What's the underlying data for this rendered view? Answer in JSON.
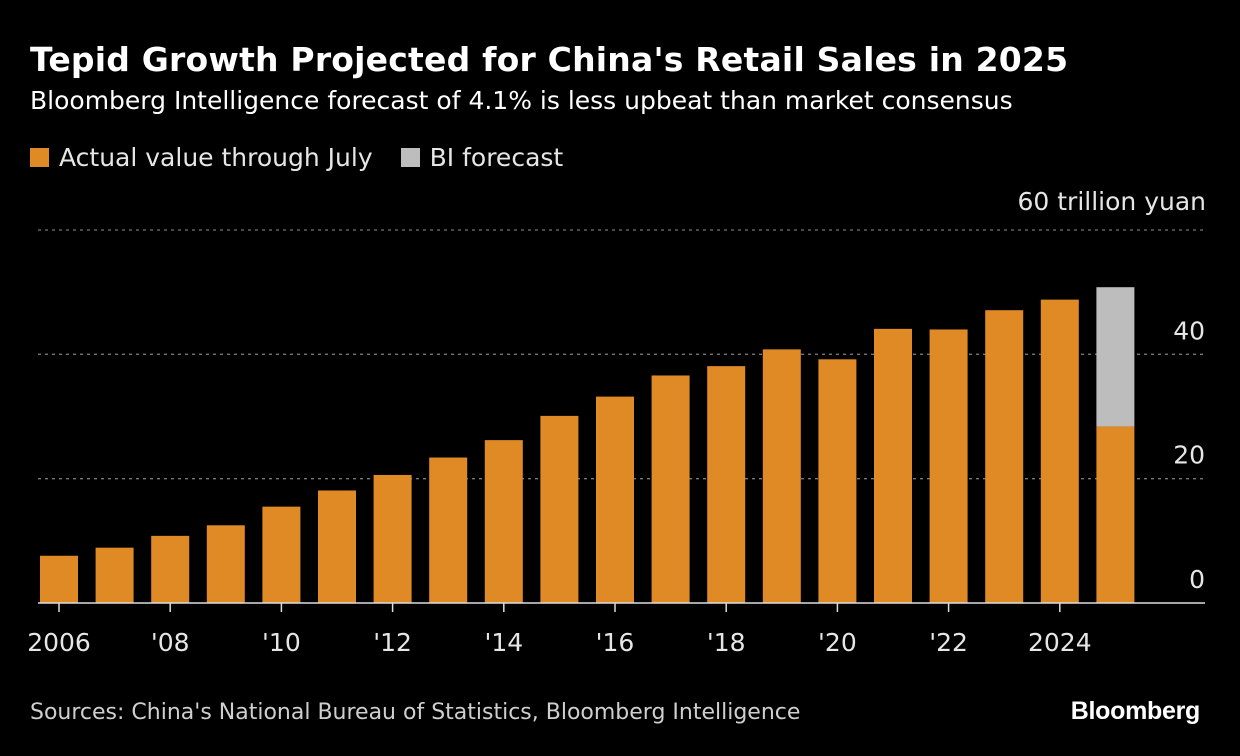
{
  "title": "Tepid Growth Projected for China's Retail Sales in 2025",
  "subtitle": "Bloomberg Intelligence forecast of 4.1% is less upbeat than market consensus",
  "legend": [
    {
      "label": "Actual value through July",
      "color": "#e08a25"
    },
    {
      "label": "BI forecast",
      "color": "#bdbdbd"
    }
  ],
  "source": "Sources: China's National Bureau of Statistics, Bloomberg Intelligence",
  "brand": "Bloomberg",
  "chart_data": {
    "type": "bar",
    "stacked": true,
    "unit_label": "60 trillion yuan",
    "categories": [
      "2006",
      "2007",
      "2008",
      "2009",
      "2010",
      "2011",
      "2012",
      "2013",
      "2014",
      "2015",
      "2016",
      "2017",
      "2018",
      "2019",
      "2020",
      "2021",
      "2022",
      "2023",
      "2024",
      "2025"
    ],
    "series": [
      {
        "name": "Actual value through July",
        "color": "#e08a25",
        "values": [
          7.6,
          8.9,
          10.8,
          12.5,
          15.5,
          18.1,
          20.6,
          23.4,
          26.2,
          30.1,
          33.2,
          36.6,
          38.1,
          40.8,
          39.2,
          44.1,
          44.0,
          47.1,
          48.8,
          28.4
        ]
      },
      {
        "name": "BI forecast",
        "color": "#bdbdbd",
        "values": [
          0,
          0,
          0,
          0,
          0,
          0,
          0,
          0,
          0,
          0,
          0,
          0,
          0,
          0,
          0,
          0,
          0,
          0,
          0,
          22.4
        ]
      }
    ],
    "ylim": [
      0,
      60
    ],
    "yticks": [
      0,
      20,
      40,
      60
    ],
    "ytick_labels": [
      "0",
      "20",
      "40",
      ""
    ],
    "xtick_labels": [
      {
        "index": 0,
        "label": "2006"
      },
      {
        "index": 2,
        "label": "'08"
      },
      {
        "index": 4,
        "label": "'10"
      },
      {
        "index": 6,
        "label": "'12"
      },
      {
        "index": 8,
        "label": "'14"
      },
      {
        "index": 10,
        "label": "'16"
      },
      {
        "index": 12,
        "label": "'18"
      },
      {
        "index": 14,
        "label": "'20"
      },
      {
        "index": 16,
        "label": "'22"
      },
      {
        "index": 18,
        "label": "2024"
      }
    ],
    "grid": true,
    "yaxis_side": "right",
    "legend_position": "top-left"
  }
}
